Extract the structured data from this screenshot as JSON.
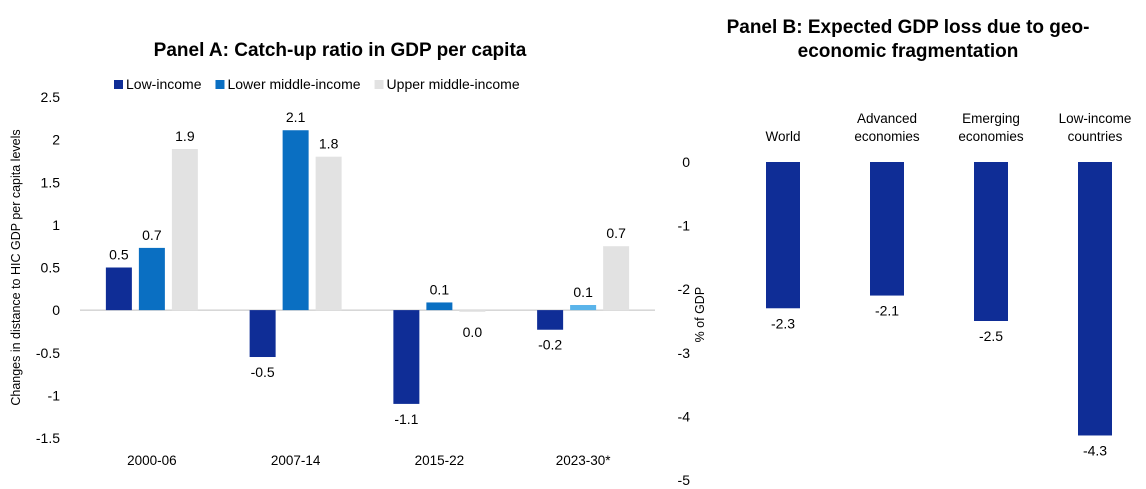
{
  "chart_data": [
    {
      "type": "bar",
      "title": "Panel A: Catch-up ratio in GDP per capita",
      "ylabel": "Changes in distance to HIC GDP per capita levels",
      "xlabel": "",
      "ylim": [
        -1.5,
        2.5
      ],
      "yticks": [
        "2.5",
        "2",
        "1.5",
        "1",
        "0.5",
        "0",
        "-0.5",
        "-1",
        "-1.5"
      ],
      "categories": [
        "2000-06",
        "2007-14",
        "2015-22",
        "2023-30*"
      ],
      "legend_position": "top",
      "series": [
        {
          "name": "Low-income",
          "color": "#0f2d96",
          "values": [
            0.5,
            -0.55,
            -1.1,
            -0.23
          ],
          "labels": [
            "0.5",
            "-0.5",
            "-1.1",
            "-0.2"
          ]
        },
        {
          "name": "Lower middle-income",
          "color": "#0a6fc2",
          "values": [
            0.73,
            2.11,
            0.09,
            0.06
          ],
          "point_colors": [
            "#0a6fc2",
            "#0a6fc2",
            "#0a6fc2",
            "#5ab4ea"
          ],
          "labels": [
            "0.7",
            "2.1",
            "0.1",
            "0.1"
          ]
        },
        {
          "name": "Upper middle-income",
          "color": "#e2e2e2",
          "values": [
            1.89,
            1.8,
            -0.02,
            0.75
          ],
          "labels": [
            "1.9",
            "1.8",
            "0.0",
            "0.7"
          ]
        }
      ],
      "grid": false
    },
    {
      "type": "bar",
      "title": "Panel B: Expected GDP loss due to geo-economic fragmentation",
      "title_lines": [
        "Panel B: Expected GDP loss due to geo-",
        "economic fragmentation"
      ],
      "ylabel": "% of GDP",
      "xlabel": "",
      "ylim": [
        -5,
        0
      ],
      "yticks": [
        "0",
        "-1",
        "-2",
        "-3",
        "-4",
        "-5"
      ],
      "categories": [
        "World",
        "Advanced economies",
        "Emerging economies",
        "Low-income countries"
      ],
      "category_lines": [
        [
          "World"
        ],
        [
          "Advanced",
          "economies"
        ],
        [
          "Emerging",
          "economies"
        ],
        [
          "Low-income",
          "countries"
        ]
      ],
      "series": [
        {
          "color": "#0f2d96",
          "values": [
            -2.3,
            -2.1,
            -2.5,
            -4.3
          ],
          "labels": [
            "-2.3",
            "-2.1",
            "-2.5",
            "-4.3"
          ]
        }
      ],
      "grid": false
    }
  ]
}
